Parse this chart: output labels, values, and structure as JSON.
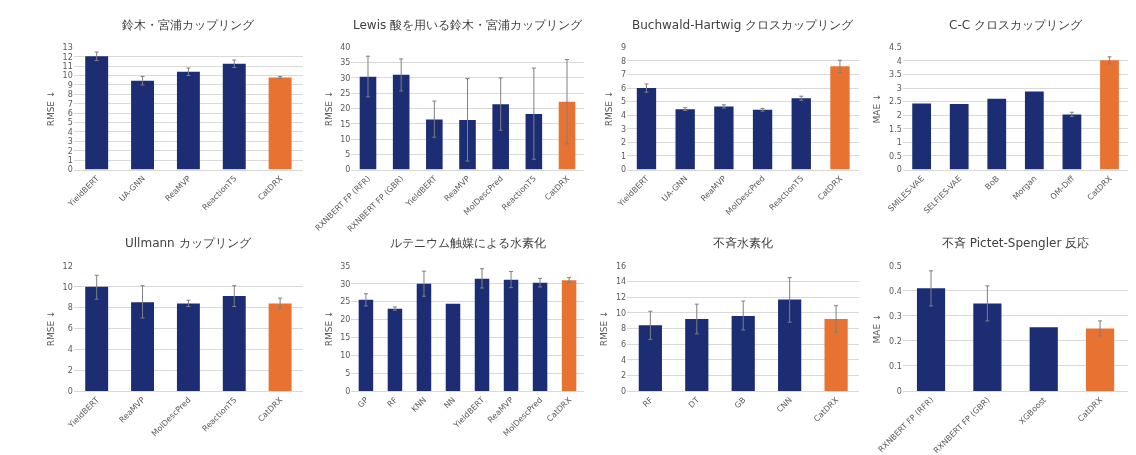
{
  "chart_data": [
    {
      "type": "bar",
      "title": "鈴木・宮浦カップリング",
      "ylabel": "RMSE ↓",
      "categories": [
        "YieldBERT",
        "UA-GNN",
        "ReaMVP",
        "ReactionT5",
        "CatDRX"
      ],
      "values": [
        12.05,
        9.45,
        10.4,
        11.25,
        9.8
      ],
      "errors": [
        0.45,
        0.45,
        0.4,
        0.4,
        0.1
      ],
      "colors": [
        "#1c2d73",
        "#1c2d73",
        "#1c2d73",
        "#1c2d73",
        "#e87232"
      ],
      "ylim": [
        0,
        13
      ],
      "yticks": [
        0,
        1,
        2,
        3,
        4,
        5,
        6,
        7,
        8,
        9,
        10,
        11,
        12,
        13
      ],
      "grid": "y",
      "legend": false
    },
    {
      "type": "bar",
      "title": "Lewis 酸を用いる鈴木・宮浦カップリング",
      "ylabel": "RMSE ↓",
      "categories": [
        "RXNBERT FP (RFR)",
        "RXNBERT FP (GBR)",
        "YieldBERT",
        "ReaMVP",
        "MolDescPred",
        "ReactionT5",
        "CatDRX"
      ],
      "values": [
        30.4,
        31.0,
        16.4,
        16.2,
        21.4,
        18.2,
        22.2
      ],
      "errors": [
        [
          23.8,
          37.1
        ],
        [
          25.7,
          36.2
        ],
        [
          10.6,
          22.4
        ],
        [
          2.8,
          29.8
        ],
        [
          12.9,
          30
        ],
        [
          3.4,
          33.2
        ],
        [
          8.4,
          36
        ]
      ],
      "colors": [
        "#1c2d73",
        "#1c2d73",
        "#1c2d73",
        "#1c2d73",
        "#1c2d73",
        "#1c2d73",
        "#e87232"
      ],
      "ylim": [
        0,
        40
      ],
      "yticks": [
        0,
        5,
        10,
        15,
        20,
        25,
        30,
        35,
        40
      ],
      "grid": "y",
      "legend": false
    },
    {
      "type": "bar",
      "title": "Buchwald-Hartwig クロスカップリング",
      "ylabel": "RMSE ↓",
      "categories": [
        "YieldBERT",
        "UA-GNN",
        "ReaMVP",
        "MolDescPred",
        "ReactionT5",
        "CatDRX"
      ],
      "values": [
        6.0,
        4.45,
        4.65,
        4.4,
        5.25,
        7.6
      ],
      "errors": [
        0.3,
        0.1,
        0.12,
        0.1,
        0.15,
        0.45
      ],
      "colors": [
        "#1c2d73",
        "#1c2d73",
        "#1c2d73",
        "#1c2d73",
        "#1c2d73",
        "#e87232"
      ],
      "ylim": [
        0,
        9
      ],
      "yticks": [
        0,
        1,
        2,
        3,
        4,
        5,
        6,
        7,
        8,
        9
      ],
      "grid": "y",
      "legend": false
    },
    {
      "type": "bar",
      "title": "C-C クロスカップリング",
      "ylabel": "MAE ↓",
      "categories": [
        "SMILES-VAE",
        "SELFIES-VAE",
        "BoB",
        "Morgan",
        "OM-Diff",
        "CatDRX"
      ],
      "values": [
        2.43,
        2.41,
        2.61,
        2.87,
        2.03,
        4.02
      ],
      "errors": [
        null,
        null,
        null,
        null,
        0.08,
        0.13
      ],
      "colors": [
        "#1c2d73",
        "#1c2d73",
        "#1c2d73",
        "#1c2d73",
        "#1c2d73",
        "#e87232"
      ],
      "ylim": [
        0,
        4.5
      ],
      "yticks": [
        0,
        0.5,
        1,
        1.5,
        2,
        2.5,
        3,
        3.5,
        4,
        4.5
      ],
      "grid": "y",
      "legend": false
    },
    {
      "type": "bar",
      "title": "Ullmann カップリング",
      "ylabel": "RMSE ↓",
      "categories": [
        "YieldBERT",
        "ReaMVP",
        "MolDescPred",
        "ReactionT5",
        "CatDRX"
      ],
      "values": [
        10.0,
        8.5,
        8.4,
        9.1,
        8.4
      ],
      "errors": [
        [
          8.8,
          11.1
        ],
        [
          7.0,
          10.1
        ],
        [
          8.1,
          8.7
        ],
        [
          8.1,
          10.1
        ],
        [
          7.9,
          8.9
        ]
      ],
      "colors": [
        "#1c2d73",
        "#1c2d73",
        "#1c2d73",
        "#1c2d73",
        "#e87232"
      ],
      "ylim": [
        0,
        12
      ],
      "yticks": [
        0,
        2,
        4,
        6,
        8,
        10,
        12
      ],
      "grid": "y",
      "legend": false
    },
    {
      "type": "bar",
      "title": "ルテニウム触媒による水素化",
      "ylabel": "RMSE ↓",
      "categories": [
        "GP",
        "RF",
        "KNN",
        "NN",
        "YieldBERT",
        "ReaMVP",
        "MolDescPred",
        "CatDRX"
      ],
      "values": [
        25.5,
        23.0,
        30.0,
        24.4,
        31.4,
        31.1,
        30.3,
        31.0
      ],
      "errors": [
        [
          23.8,
          27.2
        ],
        [
          22.6,
          23.5
        ],
        [
          26.5,
          33.5
        ],
        null,
        [
          28.8,
          34.2
        ],
        [
          28.9,
          33.4
        ],
        [
          29.1,
          31.5
        ],
        [
          30.3,
          31.7
        ]
      ],
      "colors": [
        "#1c2d73",
        "#1c2d73",
        "#1c2d73",
        "#1c2d73",
        "#1c2d73",
        "#1c2d73",
        "#1c2d73",
        "#e87232"
      ],
      "ylim": [
        0,
        35
      ],
      "yticks": [
        0,
        5,
        10,
        15,
        20,
        25,
        30,
        35
      ],
      "grid": "y",
      "legend": false
    },
    {
      "type": "bar",
      "title": "不斉水素化",
      "ylabel": "RMSE ↓",
      "categories": [
        "RF",
        "DT",
        "GB",
        "CNN",
        "CatDRX"
      ],
      "values": [
        8.4,
        9.2,
        9.6,
        11.7,
        9.2
      ],
      "errors": [
        [
          6.6,
          10.2
        ],
        [
          7.3,
          11.1
        ],
        [
          7.8,
          11.5
        ],
        [
          8.8,
          14.5
        ],
        [
          7.5,
          10.9
        ]
      ],
      "colors": [
        "#1c2d73",
        "#1c2d73",
        "#1c2d73",
        "#1c2d73",
        "#e87232"
      ],
      "ylim": [
        0,
        16
      ],
      "yticks": [
        0,
        2,
        4,
        6,
        8,
        10,
        12,
        14,
        16
      ],
      "grid": "y",
      "legend": false
    },
    {
      "type": "bar",
      "title": "不斉 Pictet-Spengler 反応",
      "ylabel": "MAE ↓",
      "categories": [
        "RXNBERT FP (RFR)",
        "RXNBERT FP (GBR)",
        "XGBoost",
        "CatDRX"
      ],
      "values": [
        0.41,
        0.35,
        0.255,
        0.25
      ],
      "errors": [
        [
          0.34,
          0.48
        ],
        [
          0.28,
          0.42
        ],
        null,
        [
          0.22,
          0.28
        ]
      ],
      "colors": [
        "#1c2d73",
        "#1c2d73",
        "#1c2d73",
        "#e87232"
      ],
      "ylim": [
        0,
        0.5
      ],
      "yticks": [
        0,
        0.1,
        0.2,
        0.3,
        0.4,
        0.5
      ],
      "grid": "y",
      "legend": false
    }
  ]
}
